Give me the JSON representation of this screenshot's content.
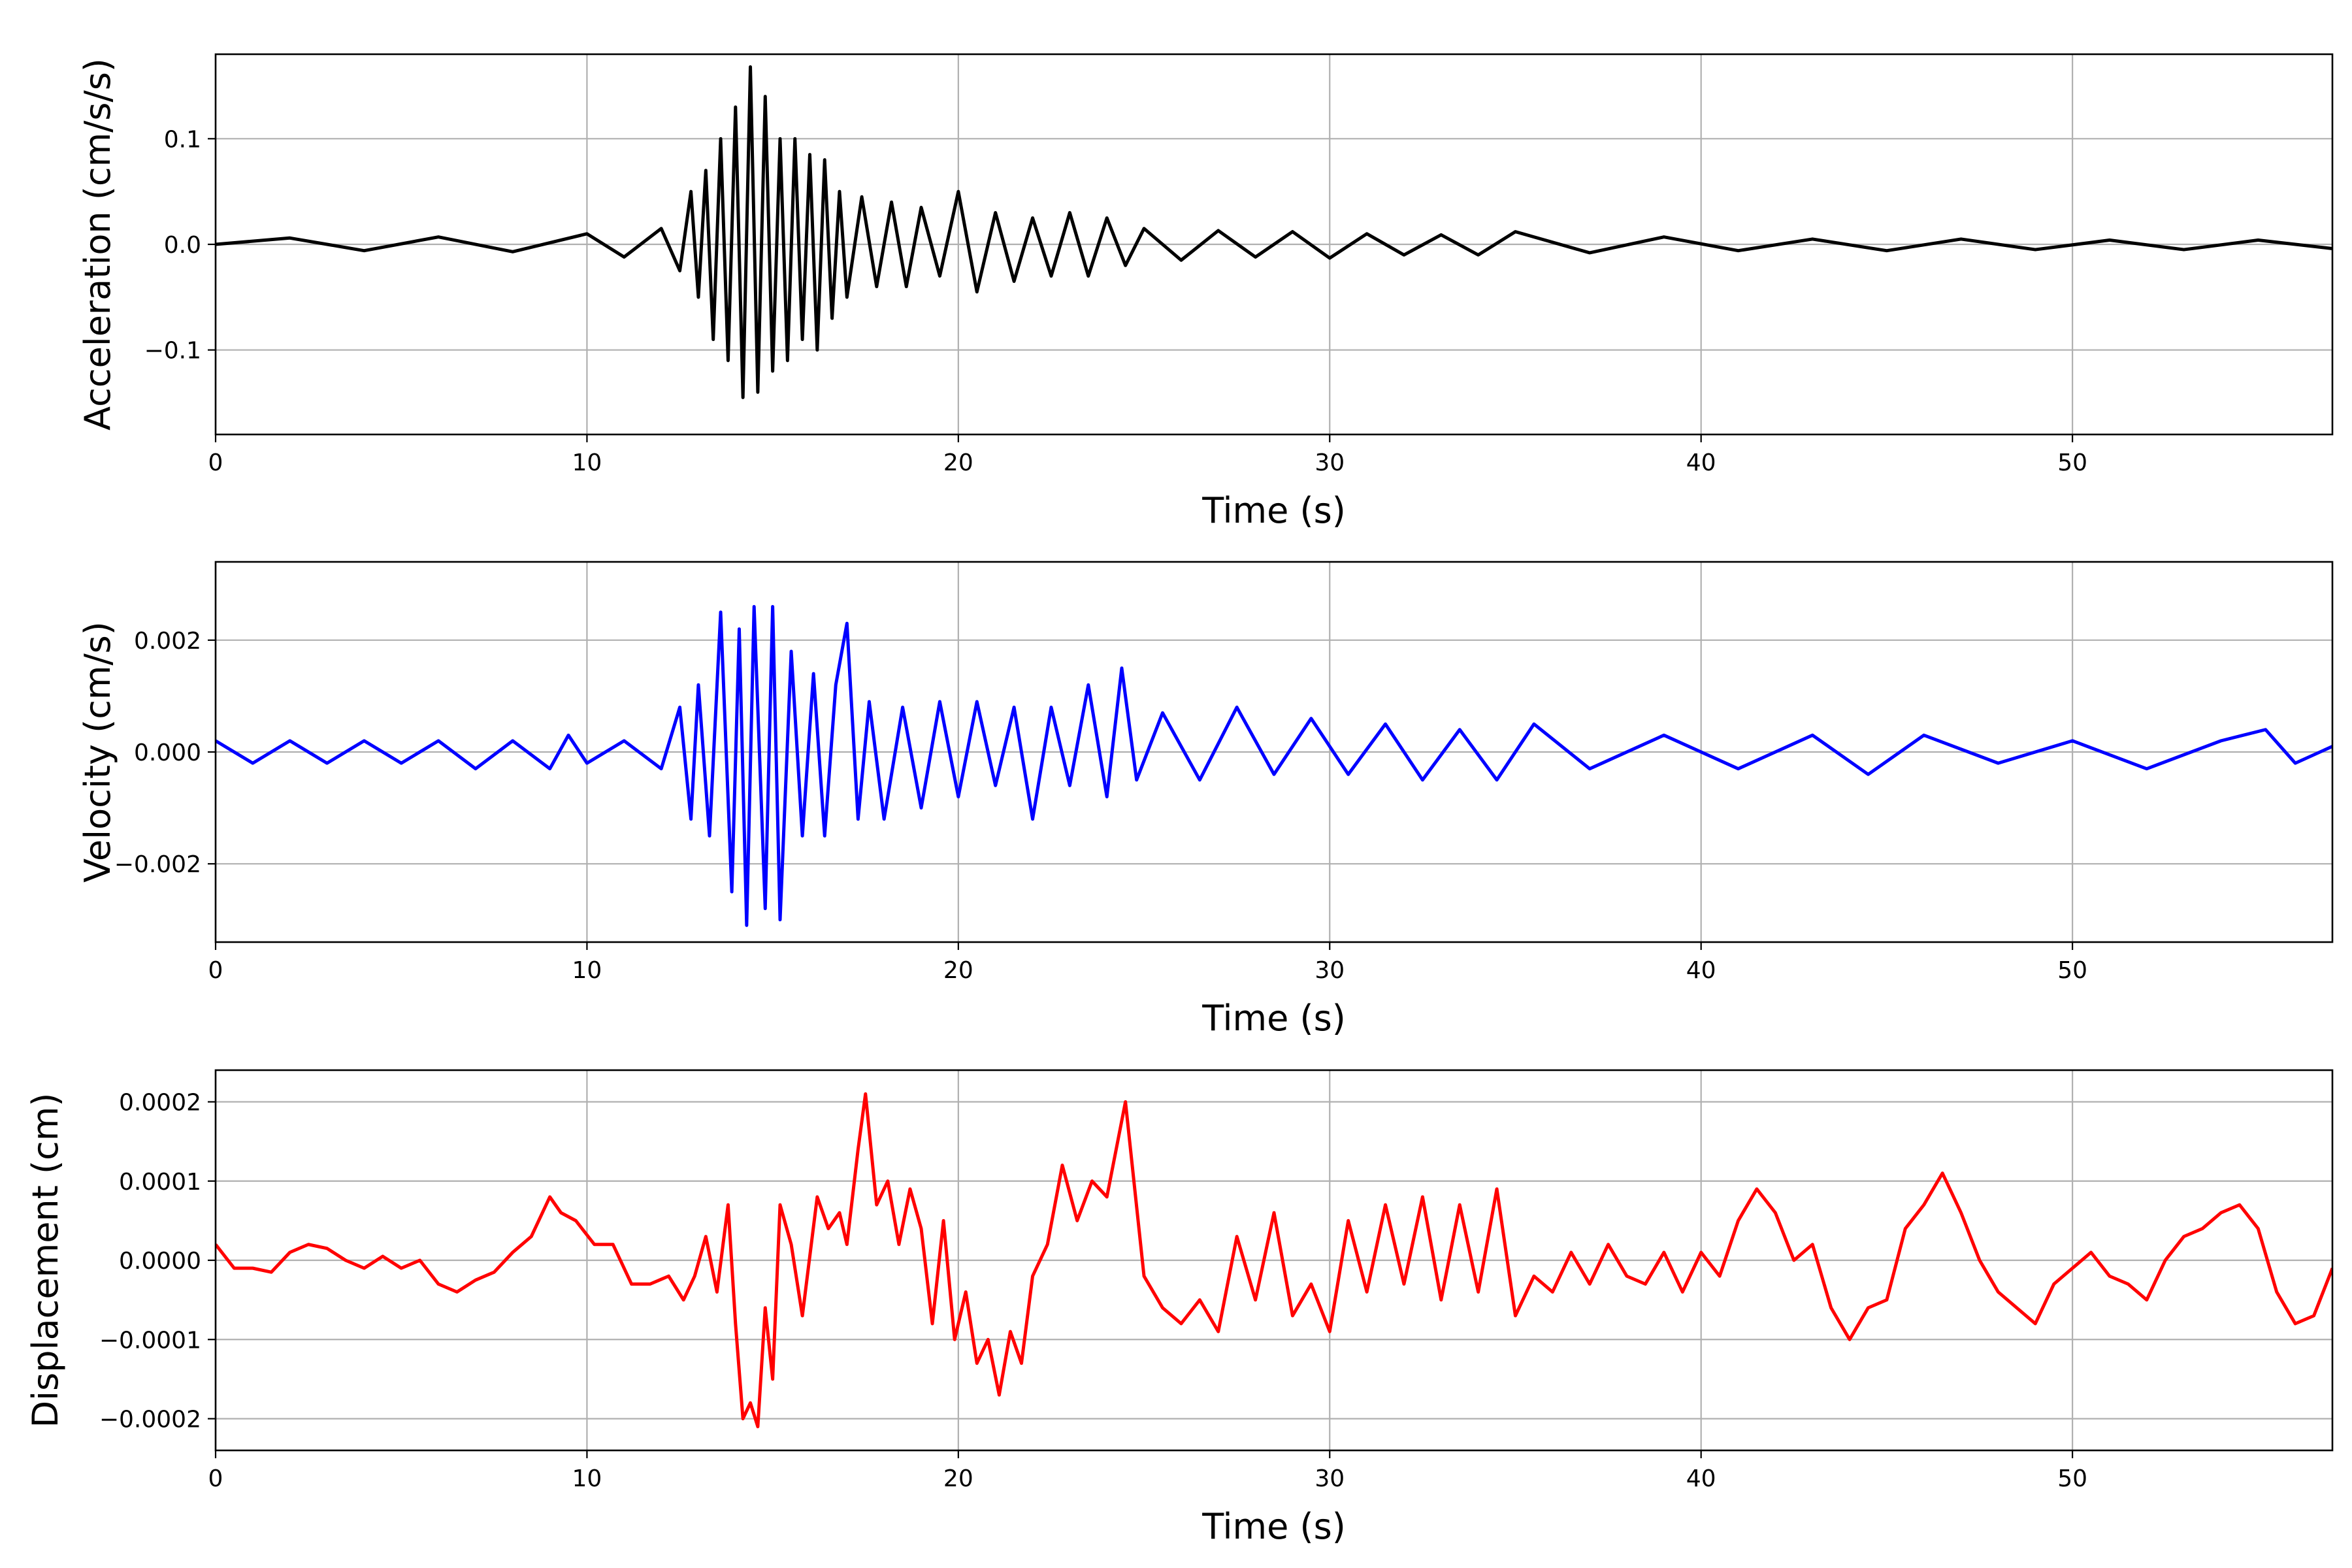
{
  "chart_data": [
    {
      "type": "line",
      "xlabel": "Time (s)",
      "ylabel": "Acceleration (cm/s/s)",
      "xlim": [
        0,
        57
      ],
      "ylim": [
        -0.18,
        0.18
      ],
      "xticks": [
        0,
        10,
        20,
        30,
        40,
        50
      ],
      "xtick_labels": [
        "0",
        "10",
        "20",
        "30",
        "40",
        "50"
      ],
      "yticks": [
        -0.1,
        0.0,
        0.1
      ],
      "ytick_labels": [
        "−0.1",
        "0.0",
        "0.1"
      ],
      "grid": true,
      "color": "#000000",
      "series": [
        {
          "x": [
            0,
            2,
            4,
            6,
            8,
            10,
            11,
            12,
            12.5,
            12.8,
            13.0,
            13.2,
            13.4,
            13.6,
            13.8,
            14.0,
            14.2,
            14.4,
            14.6,
            14.8,
            15.0,
            15.2,
            15.4,
            15.6,
            15.8,
            16.0,
            16.2,
            16.4,
            16.6,
            16.8,
            17.0,
            17.4,
            17.8,
            18.2,
            18.6,
            19.0,
            19.5,
            20.0,
            20.5,
            21.0,
            21.5,
            22.0,
            22.5,
            23.0,
            23.5,
            24.0,
            24.5,
            25.0,
            26.0,
            27.0,
            28.0,
            29.0,
            30.0,
            31.0,
            32.0,
            33.0,
            34.0,
            35.0,
            37.0,
            39.0,
            41.0,
            43.0,
            45.0,
            47.0,
            49.0,
            51.0,
            53.0,
            55.0,
            57.0
          ],
          "y": [
            0.0,
            0.006,
            -0.006,
            0.007,
            -0.007,
            0.01,
            -0.012,
            0.015,
            -0.025,
            0.05,
            -0.05,
            0.07,
            -0.09,
            0.1,
            -0.11,
            0.13,
            -0.145,
            0.168,
            -0.14,
            0.14,
            -0.12,
            0.1,
            -0.11,
            0.1,
            -0.09,
            0.085,
            -0.1,
            0.08,
            -0.07,
            0.05,
            -0.05,
            0.045,
            -0.04,
            0.04,
            -0.04,
            0.035,
            -0.03,
            0.05,
            -0.045,
            0.03,
            -0.035,
            0.025,
            -0.03,
            0.03,
            -0.03,
            0.025,
            -0.02,
            0.015,
            -0.015,
            0.013,
            -0.012,
            0.012,
            -0.013,
            0.01,
            -0.01,
            0.009,
            -0.01,
            0.012,
            -0.008,
            0.007,
            -0.006,
            0.005,
            -0.006,
            0.005,
            -0.005,
            0.004,
            -0.005,
            0.004,
            -0.004
          ]
        }
      ]
    },
    {
      "type": "line",
      "xlabel": "Time (s)",
      "ylabel": "Velocity (cm/s)",
      "xlim": [
        0,
        57
      ],
      "ylim": [
        -0.0034,
        0.0034
      ],
      "xticks": [
        0,
        10,
        20,
        30,
        40,
        50
      ],
      "xtick_labels": [
        "0",
        "10",
        "20",
        "30",
        "40",
        "50"
      ],
      "yticks": [
        -0.002,
        0.0,
        0.002
      ],
      "ytick_labels": [
        "−0.002",
        "0.000",
        "0.002"
      ],
      "grid": true,
      "color": "#0000ff",
      "series": [
        {
          "x": [
            0,
            1,
            2,
            3,
            4,
            5,
            6,
            7,
            8,
            9,
            9.5,
            10,
            11,
            12,
            12.5,
            12.8,
            13.0,
            13.3,
            13.6,
            13.9,
            14.1,
            14.3,
            14.5,
            14.8,
            15.0,
            15.2,
            15.5,
            15.8,
            16.1,
            16.4,
            16.7,
            17.0,
            17.3,
            17.6,
            18.0,
            18.5,
            19.0,
            19.5,
            20.0,
            20.5,
            21.0,
            21.5,
            22.0,
            22.5,
            23.0,
            23.5,
            24.0,
            24.4,
            24.8,
            25.5,
            26.5,
            27.5,
            28.5,
            29.5,
            30.5,
            31.5,
            32.5,
            33.5,
            34.5,
            35.5,
            37.0,
            39.0,
            41.0,
            43.0,
            44.5,
            46.0,
            48.0,
            50.0,
            52.0,
            54.0,
            55.2,
            56.0,
            57.0
          ],
          "y": [
            0.0002,
            -0.0002,
            0.0002,
            -0.0002,
            0.0002,
            -0.0002,
            0.0002,
            -0.0003,
            0.0002,
            -0.0003,
            0.0003,
            -0.0002,
            0.0002,
            -0.0003,
            0.0008,
            -0.0012,
            0.0012,
            -0.0015,
            0.0025,
            -0.0025,
            0.0022,
            -0.0031,
            0.0026,
            -0.0028,
            0.0026,
            -0.003,
            0.0018,
            -0.0015,
            0.0014,
            -0.0015,
            0.0012,
            0.0023,
            -0.0012,
            0.0009,
            -0.0012,
            0.0008,
            -0.001,
            0.0009,
            -0.0008,
            0.0009,
            -0.0006,
            0.0008,
            -0.0012,
            0.0008,
            -0.0006,
            0.0012,
            -0.0008,
            0.0015,
            -0.0005,
            0.0007,
            -0.0005,
            0.0008,
            -0.0004,
            0.0006,
            -0.0004,
            0.0005,
            -0.0005,
            0.0004,
            -0.0005,
            0.0005,
            -0.0003,
            0.0003,
            -0.0003,
            0.0003,
            -0.0004,
            0.0003,
            -0.0002,
            0.0002,
            -0.0003,
            0.0002,
            0.0004,
            -0.0002,
            0.0001
          ]
        }
      ]
    },
    {
      "type": "line",
      "xlabel": "Time (s)",
      "ylabel": "Displacement (cm)",
      "xlim": [
        0,
        57
      ],
      "ylim": [
        -0.00024,
        0.00024
      ],
      "xticks": [
        0,
        10,
        20,
        30,
        40,
        50
      ],
      "xtick_labels": [
        "0",
        "10",
        "20",
        "30",
        "40",
        "50"
      ],
      "yticks": [
        -0.0002,
        -0.0001,
        0.0,
        0.0001,
        0.0002
      ],
      "ytick_labels": [
        "−0.0002",
        "−0.0001",
        "0.0000",
        "0.0001",
        "0.0002"
      ],
      "grid": true,
      "color": "#ff0000",
      "series": [
        {
          "x": [
            0,
            0.5,
            1.0,
            1.5,
            2.0,
            2.5,
            3.0,
            3.5,
            4.0,
            4.5,
            5.0,
            5.5,
            6.0,
            6.5,
            7.0,
            7.5,
            8.0,
            8.5,
            9.0,
            9.3,
            9.7,
            10.2,
            10.7,
            11.2,
            11.7,
            12.2,
            12.6,
            12.9,
            13.2,
            13.5,
            13.8,
            14.0,
            14.2,
            14.4,
            14.6,
            14.8,
            15.0,
            15.2,
            15.5,
            15.8,
            16.2,
            16.5,
            16.8,
            17.0,
            17.3,
            17.5,
            17.8,
            18.1,
            18.4,
            18.7,
            19.0,
            19.3,
            19.6,
            19.9,
            20.2,
            20.5,
            20.8,
            21.1,
            21.4,
            21.7,
            22.0,
            22.4,
            22.8,
            23.2,
            23.6,
            24.0,
            24.5,
            25.0,
            25.5,
            26.0,
            26.5,
            27.0,
            27.5,
            28.0,
            28.5,
            29.0,
            29.5,
            30.0,
            30.5,
            31.0,
            31.5,
            32.0,
            32.5,
            33.0,
            33.5,
            34.0,
            34.5,
            35.0,
            35.5,
            36.0,
            36.5,
            37.0,
            37.5,
            38.0,
            38.5,
            39.0,
            39.5,
            40.0,
            40.5,
            41.0,
            41.5,
            42.0,
            42.5,
            43.0,
            43.5,
            44.0,
            44.5,
            45.0,
            45.5,
            46.0,
            46.5,
            47.0,
            47.5,
            48.0,
            48.5,
            49.0,
            49.5,
            50.0,
            50.5,
            51.0,
            51.5,
            52.0,
            52.5,
            53.0,
            53.5,
            54.0,
            54.5,
            55.0,
            55.5,
            56.0,
            56.5,
            57.0
          ],
          "y": [
            2e-05,
            -1e-05,
            -1e-05,
            -1.5e-05,
            1e-05,
            2e-05,
            1.5e-05,
            0.0,
            -1e-05,
            5e-06,
            -1e-05,
            0.0,
            -3e-05,
            -4e-05,
            -2.5e-05,
            -1.5e-05,
            1e-05,
            3e-05,
            8e-05,
            6e-05,
            5e-05,
            2e-05,
            2e-05,
            -3e-05,
            -3e-05,
            -2e-05,
            -5e-05,
            -2e-05,
            3e-05,
            -4e-05,
            7e-05,
            -8e-05,
            -0.0002,
            -0.00018,
            -0.00021,
            -6e-05,
            -0.00015,
            7e-05,
            2e-05,
            -7e-05,
            8e-05,
            4e-05,
            6e-05,
            2e-05,
            0.00014,
            0.00021,
            7e-05,
            0.0001,
            2e-05,
            9e-05,
            4e-05,
            -8e-05,
            5e-05,
            -0.0001,
            -4e-05,
            -0.00013,
            -0.0001,
            -0.00017,
            -9e-05,
            -0.00013,
            -2e-05,
            2e-05,
            0.00012,
            5e-05,
            0.0001,
            8e-05,
            0.0002,
            -2e-05,
            -6e-05,
            -8e-05,
            -5e-05,
            -9e-05,
            3e-05,
            -5e-05,
            6e-05,
            -7e-05,
            -3e-05,
            -9e-05,
            5e-05,
            -4e-05,
            7e-05,
            -3e-05,
            8e-05,
            -5e-05,
            7e-05,
            -4e-05,
            9e-05,
            -7e-05,
            -2e-05,
            -4e-05,
            1e-05,
            -3e-05,
            2e-05,
            -2e-05,
            -3e-05,
            1e-05,
            -4e-05,
            1e-05,
            -2e-05,
            5e-05,
            9e-05,
            6e-05,
            0.0,
            2e-05,
            -6e-05,
            -0.0001,
            -6e-05,
            -5e-05,
            4e-05,
            7e-05,
            0.00011,
            6e-05,
            0.0,
            -4e-05,
            -6e-05,
            -8e-05,
            -3e-05,
            -1e-05,
            1e-05,
            -2e-05,
            -3e-05,
            -5e-05,
            0.0,
            3e-05,
            4e-05,
            6e-05,
            7e-05,
            4e-05,
            -4e-05,
            -8e-05,
            -7e-05,
            -1e-05
          ]
        }
      ]
    }
  ]
}
